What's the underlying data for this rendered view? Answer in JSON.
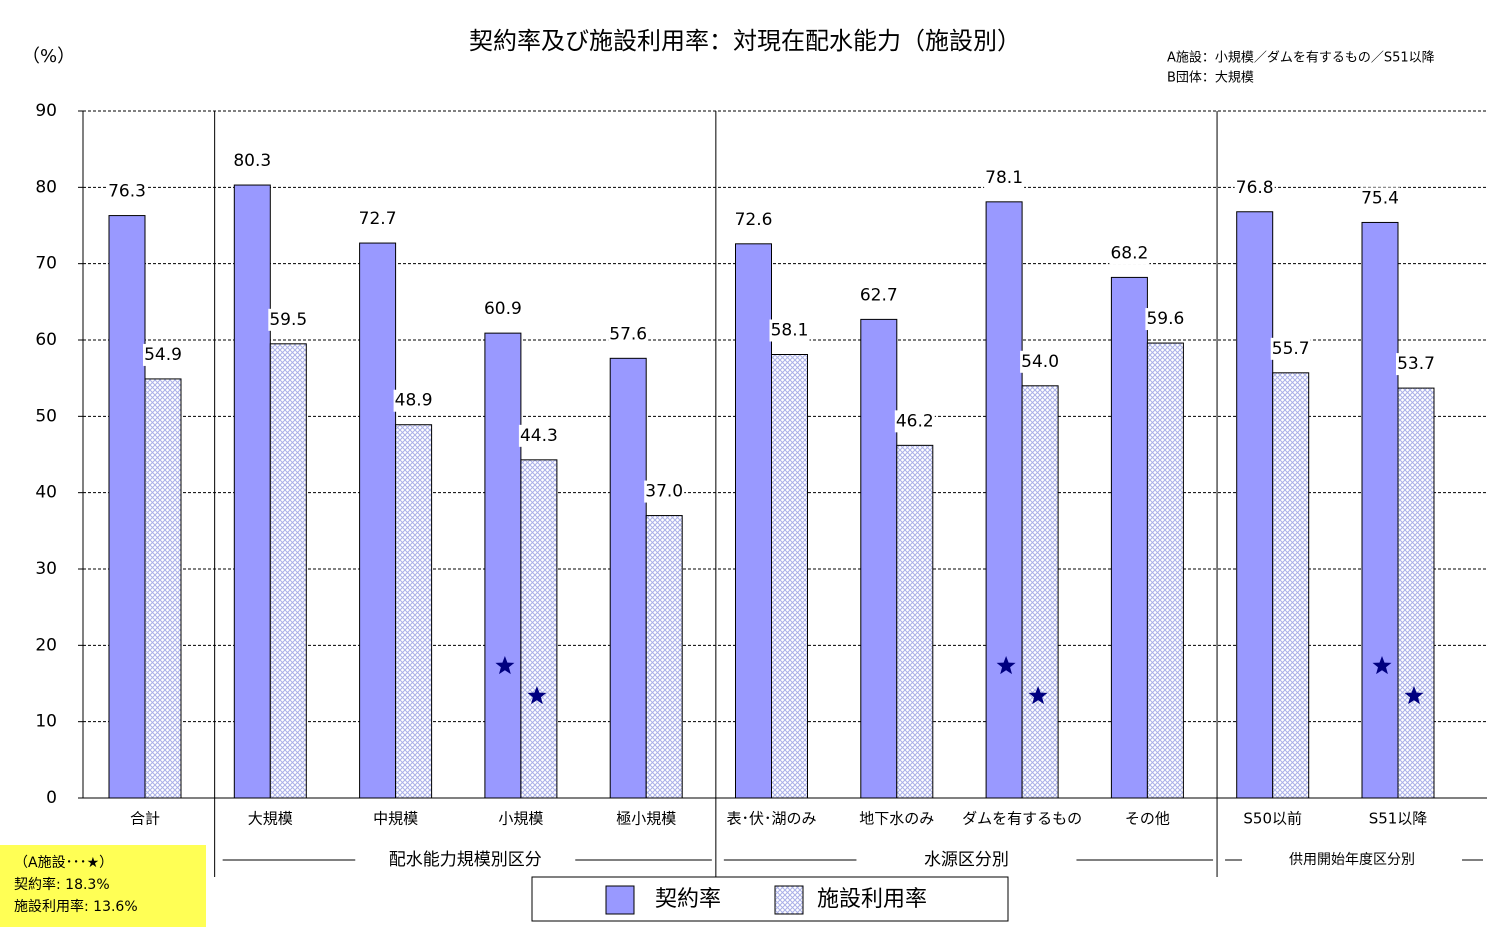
{
  "chart_data": {
    "type": "bar",
    "title": "契約率及び施設利用率：対現在配水能力（施設別）",
    "y_label": "（%）",
    "note": [
      "A施設：小規模／ダムを有するもの／S51以降",
      "B団体：大規模"
    ],
    "categories": [
      "合計",
      "大規模",
      "中規模",
      "小規模",
      "極小規模",
      "表･伏･湖のみ",
      "地下水のみ",
      "ダムを有するもの",
      "その他",
      "S50以前",
      "S51以降"
    ],
    "groups": [
      {
        "label": "配水能力規模別区分"
      },
      {
        "label": "水源区分別"
      },
      {
        "label": "供用開始年度区分別"
      }
    ],
    "series": [
      {
        "name": "契約率",
        "color": "#9999ff",
        "values": [
          76.3,
          80.3,
          72.7,
          60.9,
          57.6,
          72.6,
          62.7,
          78.1,
          68.2,
          76.8,
          75.4
        ],
        "value_labels": [
          "76.3",
          "80.3",
          "72.7",
          "60.9",
          "57.6",
          "72.6",
          "62.7",
          "78.1",
          "68.2",
          "76.8",
          "75.4"
        ]
      },
      {
        "name": "施設利用率",
        "color": "#aab0e8",
        "values": [
          54.9,
          59.5,
          48.9,
          44.3,
          37.0,
          58.1,
          46.2,
          54.0,
          59.6,
          55.7,
          53.7
        ],
        "value_labels": [
          "54.9",
          "59.5",
          "48.9",
          "44.3",
          "37.0",
          "58.1",
          "46.2",
          "54.0",
          "59.6",
          "55.7",
          "53.7"
        ]
      }
    ],
    "ylim": [
      0,
      90
    ],
    "yticks": [
      0,
      10,
      20,
      30,
      40,
      50,
      60,
      70,
      80,
      90
    ],
    "grid": true,
    "star_box": [
      "（A施設･･･★）",
      "契約率: 18.3%",
      "施設利用率: 13.6%"
    ]
  }
}
